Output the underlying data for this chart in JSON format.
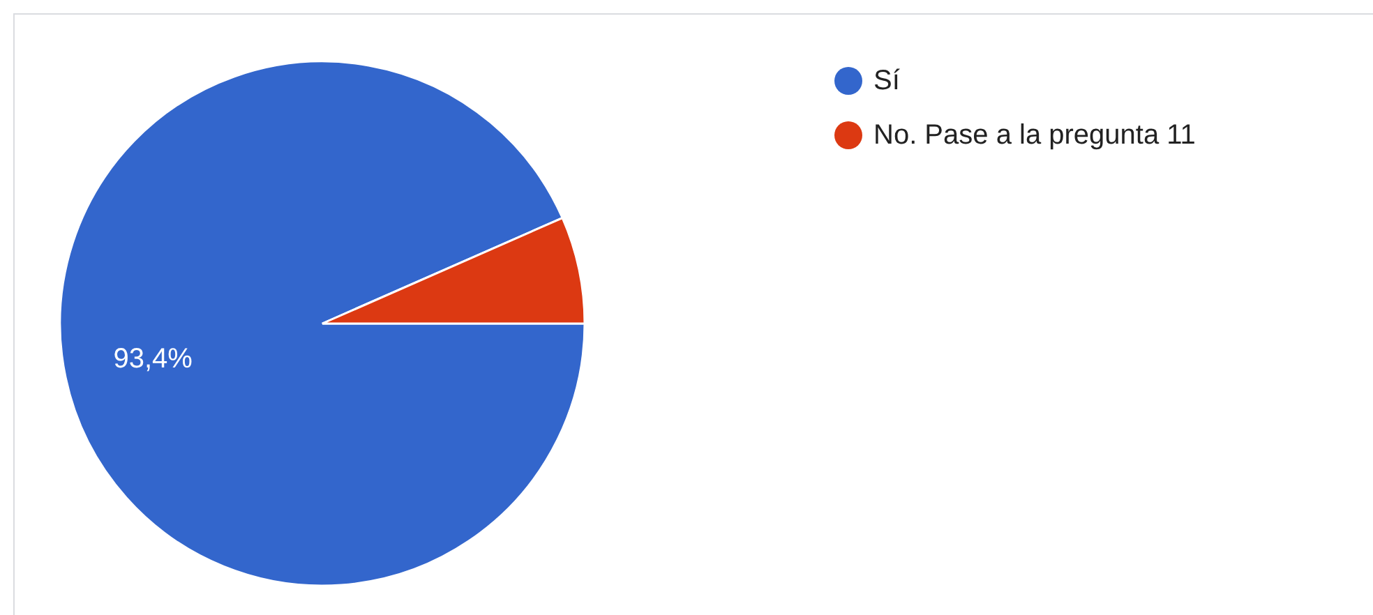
{
  "chart_data": {
    "type": "pie",
    "categories": [
      "Sí",
      "No. Pase a la pregunta 11"
    ],
    "values": [
      93.4,
      6.6
    ],
    "colors": [
      "#3366cc",
      "#dc3912"
    ],
    "value_labels": [
      "93,4%",
      null
    ],
    "legend": "top right"
  }
}
